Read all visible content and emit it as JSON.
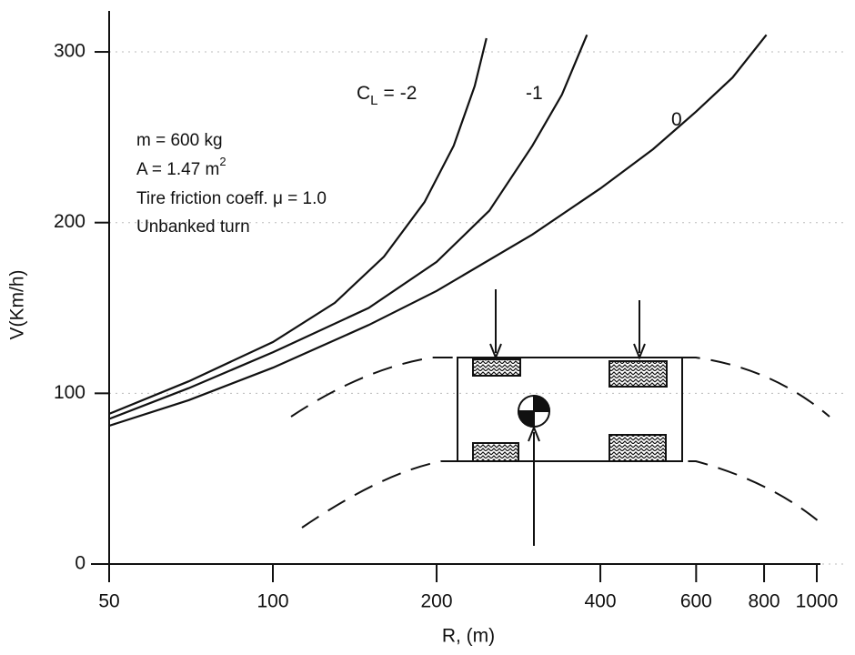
{
  "chart_data": {
    "type": "line",
    "x_label": "R, (m)",
    "y_label": "V(Km/h)",
    "xlim": [
      50,
      1000
    ],
    "ylim": [
      0,
      324
    ],
    "log_x": true,
    "grid": true,
    "xticks": [
      50,
      100,
      200,
      400,
      600,
      800,
      1000
    ],
    "yticks": [
      0,
      100,
      200,
      300
    ],
    "curve_label_prefix": {
      "symbol": "C",
      "subscript": "L",
      "equals": "="
    },
    "series": [
      {
        "name": "-2",
        "color": "#111111",
        "x": [
          50,
          70,
          100,
          130,
          160,
          190,
          215,
          235,
          247
        ],
        "values": [
          88,
          107,
          130,
          153,
          180,
          212,
          245,
          280,
          308
        ]
      },
      {
        "name": "-1",
        "color": "#111111",
        "x": [
          50,
          70,
          100,
          150,
          200,
          250,
          300,
          340,
          378
        ],
        "values": [
          85,
          103,
          124,
          150,
          177,
          207,
          245,
          275,
          310
        ]
      },
      {
        "name": "0",
        "color": "#111111",
        "x": [
          50,
          70,
          100,
          150,
          200,
          300,
          400,
          500,
          600,
          700,
          808
        ],
        "values": [
          81,
          96,
          115,
          140,
          160,
          193,
          220,
          243,
          265,
          285,
          310
        ]
      }
    ],
    "annotations": [
      "m = 600 kg",
      {
        "text": "A = 1.47 m",
        "sup": "2"
      },
      "Tire friction coeff. μ = 1.0",
      "Unbanked turn"
    ]
  }
}
